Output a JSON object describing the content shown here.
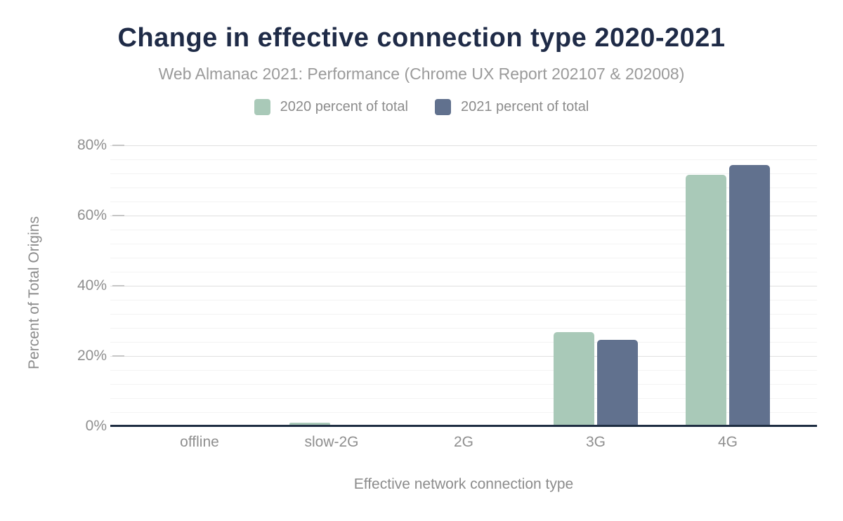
{
  "chart_data": {
    "type": "bar",
    "title": "Change in effective connection type 2020-2021",
    "subtitle": "Web Almanac 2021: Performance (Chrome UX Report 202107 & 202008)",
    "categories": [
      "offline",
      "slow-2G",
      "2G",
      "3G",
      "4G"
    ],
    "series": [
      {
        "name": "2020 percent of total",
        "color": "#a9c9b8",
        "values": [
          0,
          1.0,
          0.5,
          26.8,
          71.6
        ]
      },
      {
        "name": "2021 percent of total",
        "color": "#61718e",
        "values": [
          0,
          0.5,
          0.1,
          24.6,
          74.5
        ]
      }
    ],
    "xlabel": "Effective network connection type",
    "ylabel": "Percent of Total Origins",
    "ylim": [
      0,
      80
    ],
    "yticks": [
      {
        "value": 0,
        "label": "0%"
      },
      {
        "value": 20,
        "label": "20%"
      },
      {
        "value": 40,
        "label": "40%"
      },
      {
        "value": 60,
        "label": "60%"
      },
      {
        "value": 80,
        "label": "80%"
      }
    ],
    "grid": {
      "minor_step_percent": 4,
      "major_step_percent": 20,
      "grid_on": true
    },
    "legend_position": "top",
    "colors": {
      "title_navy": "#1f2b47",
      "axis_line_navy": "#1e2d42",
      "label_gray": "#8f8f8f",
      "subtitle_gray": "#9a9a9a",
      "series_2020_green": "#a9c9b8",
      "series_2021_blue": "#61718e"
    }
  }
}
